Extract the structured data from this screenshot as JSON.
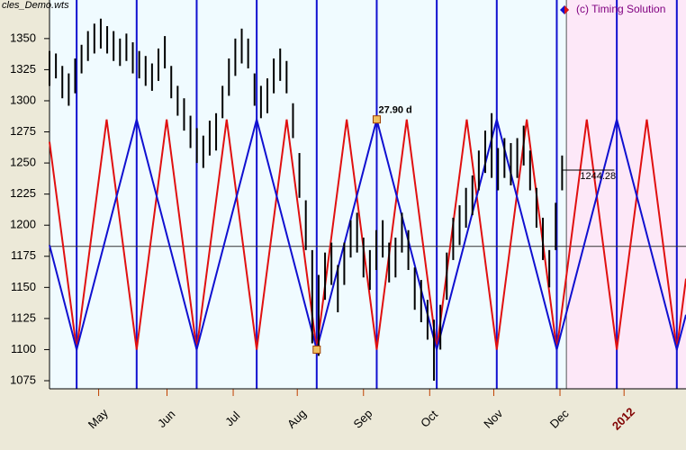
{
  "chart_data": {
    "type": "ohlc",
    "file_label": "cles_Demo.wts",
    "copyright": "(c) Timing Solution",
    "bar_color": "#000000",
    "xlim": [
      0,
      298
    ],
    "ylim": [
      1068.5,
      1381
    ],
    "yticks": [
      1075,
      1100,
      1125,
      1150,
      1175,
      1200,
      1225,
      1250,
      1275,
      1300,
      1325,
      1350
    ],
    "xticks": [
      {
        "value": 23,
        "label": "May"
      },
      {
        "value": 55,
        "label": "Jun"
      },
      {
        "value": 86,
        "label": "Jul"
      },
      {
        "value": 116,
        "label": "Aug"
      },
      {
        "value": 147,
        "label": "Sep"
      },
      {
        "value": 178,
        "label": "Oct"
      },
      {
        "value": 208,
        "label": "Nov"
      },
      {
        "value": 239,
        "label": "Dec"
      },
      {
        "value": 269,
        "label": "2012"
      }
    ],
    "x": [
      0,
      3,
      6,
      9,
      12,
      15,
      18,
      21,
      24,
      27,
      30,
      33,
      36,
      39,
      42,
      45,
      48,
      51,
      54,
      57,
      60,
      63,
      66,
      69,
      72,
      75,
      78,
      81,
      84,
      87,
      90,
      93,
      96,
      99,
      102,
      105,
      108,
      111,
      114,
      117,
      120,
      123,
      126,
      129,
      132,
      135,
      138,
      141,
      144,
      147,
      150,
      153,
      156,
      159,
      162,
      165,
      168,
      171,
      174,
      177,
      180,
      183,
      186,
      189,
      192,
      195,
      198,
      201,
      204,
      207,
      210,
      213,
      216,
      219,
      222,
      225,
      228,
      231,
      234,
      237,
      240
    ],
    "high": [
      1340,
      1338,
      1328,
      1322,
      1334,
      1345,
      1356,
      1362,
      1366,
      1360,
      1356,
      1350,
      1354,
      1347,
      1340,
      1336,
      1330,
      1342,
      1352,
      1328,
      1312,
      1302,
      1288,
      1278,
      1272,
      1284,
      1290,
      1312,
      1334,
      1350,
      1358,
      1350,
      1322,
      1312,
      1318,
      1334,
      1342,
      1332,
      1298,
      1258,
      1220,
      1180,
      1160,
      1178,
      1186,
      1168,
      1186,
      1204,
      1210,
      1190,
      1180,
      1196,
      1204,
      1186,
      1190,
      1210,
      1196,
      1166,
      1156,
      1140,
      1124,
      1136,
      1178,
      1206,
      1216,
      1230,
      1240,
      1260,
      1276,
      1290,
      1262,
      1270,
      1266,
      1270,
      1280,
      1260,
      1230,
      1206,
      1180,
      1218,
      1256
    ],
    "low": [
      1312,
      1318,
      1302,
      1296,
      1306,
      1322,
      1332,
      1338,
      1342,
      1338,
      1332,
      1328,
      1332,
      1322,
      1318,
      1312,
      1308,
      1316,
      1326,
      1302,
      1288,
      1276,
      1262,
      1250,
      1246,
      1256,
      1260,
      1286,
      1304,
      1320,
      1330,
      1326,
      1296,
      1286,
      1290,
      1306,
      1316,
      1306,
      1270,
      1222,
      1180,
      1105,
      1095,
      1140,
      1152,
      1130,
      1152,
      1174,
      1178,
      1158,
      1148,
      1164,
      1174,
      1154,
      1158,
      1178,
      1164,
      1132,
      1122,
      1108,
      1075,
      1100,
      1140,
      1172,
      1184,
      1198,
      1208,
      1228,
      1242,
      1238,
      1228,
      1238,
      1232,
      1238,
      1248,
      1228,
      1198,
      1172,
      1150,
      1180,
      1228
    ],
    "cycles": [
      {
        "color": "#e01010",
        "x": [
          0,
          12.7,
          26.75,
          40.8,
          54.85,
          68.9,
          82.95,
          97.0,
          111.05,
          125.1,
          139.15,
          153.2,
          167.25,
          181.3,
          195.35,
          209.4,
          223.45,
          237.5,
          251.55,
          265.6,
          279.65,
          293.7,
          298
        ],
        "values": [
          1267,
          1100,
          1285,
          1100,
          1285,
          1100,
          1285,
          1100,
          1285,
          1100,
          1285,
          1100,
          1285,
          1100,
          1285,
          1100,
          1285,
          1100,
          1285,
          1100,
          1285,
          1100,
          1157
        ]
      },
      {
        "color": "#1010d0",
        "x": [
          0,
          12.7,
          40.8,
          68.9,
          97.0,
          125.1,
          153.2,
          181.3,
          209.4,
          237.5,
          265.6,
          293.7,
          298
        ],
        "values": [
          1184,
          1100,
          1285,
          1100,
          1285,
          1100,
          1285,
          1100,
          1285,
          1100,
          1285,
          1100,
          1128
        ]
      }
    ],
    "hline": 1183,
    "forecast_start": 242,
    "markers": [
      {
        "x": 153.2,
        "y": 1285
      },
      {
        "x": 125.1,
        "y": 1100
      }
    ],
    "annotation": "27.90 d",
    "last_price": 1244.28
  }
}
